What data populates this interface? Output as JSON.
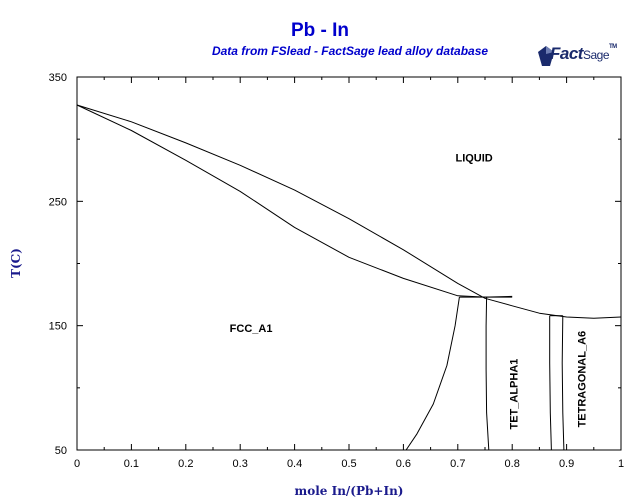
{
  "header": {
    "title": "Pb - In",
    "subtitle": "Data from FSlead - FactSage lead alloy database"
  },
  "logo": {
    "brand": "Fact",
    "brand_suffix": "Sage",
    "tm": "TM"
  },
  "chart_data": {
    "type": "line",
    "title": "Pb - In",
    "subtitle": "Data from FSlead - FactSage lead alloy database",
    "xlabel": "mole In/(Pb+In)",
    "ylabel": "T(C)",
    "xlim": [
      0,
      1
    ],
    "ylim": [
      50,
      350
    ],
    "x_ticks": [
      "0",
      "0.1",
      "0.2",
      "0.3",
      "0.4",
      "0.5",
      "0.6",
      "0.7",
      "0.8",
      "0.9",
      "1"
    ],
    "y_ticks": [
      "50",
      "150",
      "250",
      "350"
    ],
    "grid": false,
    "line_color": "#000000",
    "phase_labels": [
      {
        "text": "LIQUID",
        "x": 0.73,
        "y": 282,
        "rotation": 0
      },
      {
        "text": "FCC_A1",
        "x": 0.32,
        "y": 145,
        "rotation": 0
      },
      {
        "text": "TET_ALPHA1",
        "x": 0.81,
        "y": 95,
        "rotation": -90
      },
      {
        "text": "TETRAGONAL_A6",
        "x": 0.935,
        "y": 107,
        "rotation": -90
      }
    ],
    "series": [
      {
        "points": [
          [
            0,
            327.5
          ],
          [
            0.1,
            314
          ],
          [
            0.2,
            297
          ],
          [
            0.3,
            279
          ],
          [
            0.4,
            259
          ],
          [
            0.5,
            236
          ],
          [
            0.6,
            211
          ],
          [
            0.7,
            184
          ],
          [
            0.75,
            172
          ],
          [
            0.8,
            166
          ],
          [
            0.85,
            160
          ],
          [
            0.9,
            157
          ],
          [
            0.95,
            156
          ],
          [
            1,
            157
          ]
        ]
      },
      {
        "points": [
          [
            0,
            327.5
          ],
          [
            0.1,
            307
          ],
          [
            0.2,
            283
          ],
          [
            0.3,
            258
          ],
          [
            0.4,
            229
          ],
          [
            0.5,
            205
          ],
          [
            0.6,
            188
          ],
          [
            0.7,
            174
          ],
          [
            0.75,
            173
          ],
          [
            0.8,
            173.5
          ]
        ]
      },
      {
        "points": [
          [
            0.703,
            173
          ],
          [
            0.695,
            150
          ],
          [
            0.68,
            118
          ],
          [
            0.655,
            87
          ],
          [
            0.625,
            63
          ],
          [
            0.605,
            50
          ]
        ]
      },
      {
        "points": [
          [
            0.753,
            173
          ],
          [
            0.752,
            150
          ],
          [
            0.752,
            115
          ],
          [
            0.753,
            80
          ],
          [
            0.757,
            50
          ]
        ]
      },
      {
        "points": [
          [
            0.703,
            173
          ],
          [
            0.8,
            173
          ]
        ]
      },
      {
        "points": [
          [
            0.869,
            158
          ],
          [
            0.869,
            120
          ],
          [
            0.87,
            80
          ],
          [
            0.872,
            50
          ]
        ]
      },
      {
        "points": [
          [
            0.893,
            158
          ],
          [
            0.892,
            120
          ],
          [
            0.893,
            80
          ],
          [
            0.895,
            50
          ]
        ]
      },
      {
        "points": [
          [
            0.869,
            158
          ],
          [
            0.893,
            158
          ]
        ]
      }
    ]
  }
}
